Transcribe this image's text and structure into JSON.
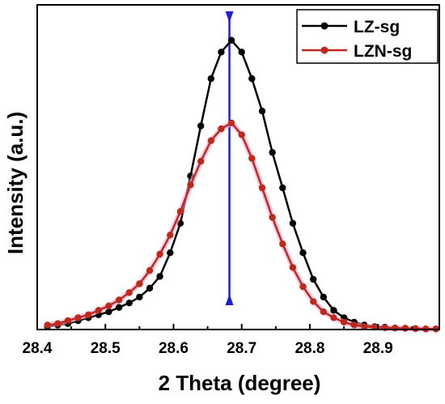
{
  "chart_data": {
    "type": "line",
    "title": "",
    "xlabel": "2 Theta (degree)",
    "ylabel": "Intensity (a.u.)",
    "xlim": [
      28.4,
      28.99
    ],
    "ylim": [
      0,
      1.1
    ],
    "y_tick_labels_shown": false,
    "x_ticks": [
      28.4,
      28.5,
      28.6,
      28.7,
      28.8,
      28.9
    ],
    "x_tick_labels": [
      "28.4",
      "28.5",
      "28.6",
      "28.7",
      "28.8",
      "28.9"
    ],
    "legend_position": "top-right",
    "reference_line": {
      "x": 28.682,
      "color": "#1f1fd6"
    },
    "series": [
      {
        "name": "LZ-sg",
        "color": "#000000",
        "x": [
          28.415,
          28.43,
          28.445,
          28.46,
          28.475,
          28.49,
          28.505,
          28.52,
          28.535,
          28.55,
          28.565,
          28.58,
          28.595,
          28.61,
          28.625,
          28.64,
          28.655,
          28.67,
          28.685,
          28.7,
          28.715,
          28.73,
          28.745,
          28.76,
          28.775,
          28.79,
          28.805,
          28.82,
          28.835,
          28.85,
          28.865,
          28.88,
          28.895,
          28.91,
          28.925,
          28.94,
          28.955,
          28.97,
          28.985
        ],
        "y": [
          0.01,
          0.015,
          0.02,
          0.03,
          0.04,
          0.05,
          0.06,
          0.075,
          0.09,
          0.11,
          0.14,
          0.18,
          0.26,
          0.36,
          0.52,
          0.69,
          0.85,
          0.94,
          0.98,
          0.94,
          0.85,
          0.74,
          0.6,
          0.48,
          0.36,
          0.26,
          0.17,
          0.11,
          0.065,
          0.04,
          0.025,
          0.015,
          0.01,
          0.008,
          0.005,
          0.004,
          0.003,
          0.002,
          0.002
        ]
      },
      {
        "name": "LZN-sg",
        "color": "#c0281c",
        "x": [
          28.415,
          28.43,
          28.445,
          28.46,
          28.475,
          28.49,
          28.505,
          28.52,
          28.535,
          28.55,
          28.565,
          28.58,
          28.595,
          28.61,
          28.625,
          28.64,
          28.655,
          28.67,
          28.685,
          28.7,
          28.715,
          28.73,
          28.745,
          28.76,
          28.775,
          28.79,
          28.805,
          28.82,
          28.835,
          28.85,
          28.865,
          28.88,
          28.895,
          28.91,
          28.925,
          28.94,
          28.955,
          28.97,
          28.985
        ],
        "y": [
          0.015,
          0.02,
          0.03,
          0.04,
          0.05,
          0.065,
          0.08,
          0.1,
          0.125,
          0.155,
          0.2,
          0.255,
          0.32,
          0.4,
          0.49,
          0.57,
          0.64,
          0.68,
          0.7,
          0.66,
          0.58,
          0.48,
          0.38,
          0.29,
          0.21,
          0.145,
          0.095,
          0.06,
          0.04,
          0.025,
          0.015,
          0.01,
          0.008,
          0.006,
          0.005,
          0.004,
          0.003,
          0.002,
          0.002
        ]
      }
    ]
  }
}
